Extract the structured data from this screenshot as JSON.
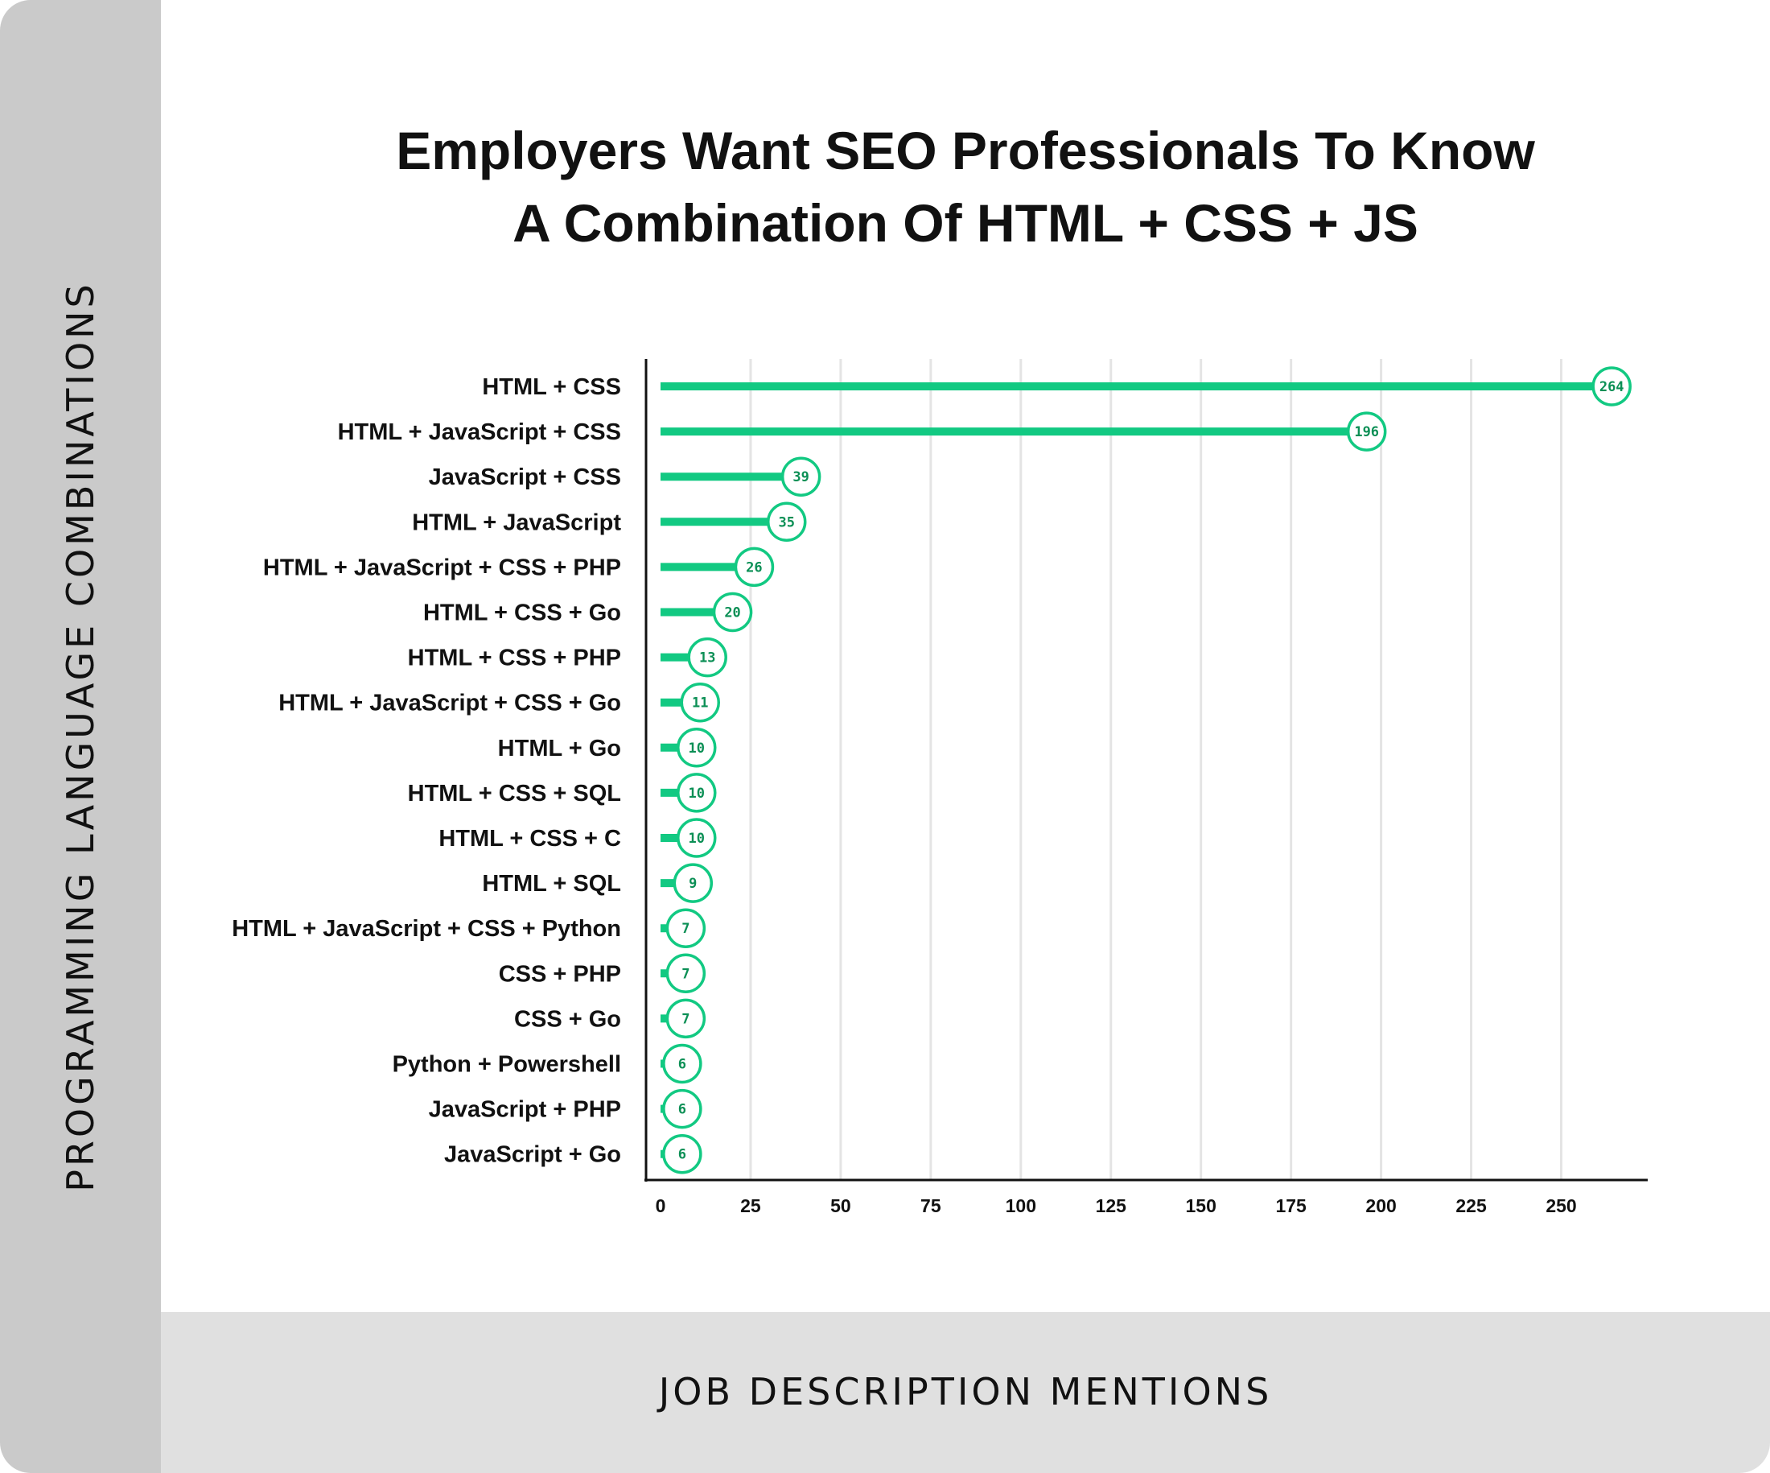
{
  "colors": {
    "bar": "#12c982",
    "marker_stroke": "#12c982",
    "label": "#0b8f55",
    "side_band": "#cacaca",
    "bottom_band": "#e0e0e0",
    "grid": "#e4e4e4"
  },
  "chart_data": {
    "type": "bar",
    "orientation": "horizontal",
    "title_lines": [
      "Employers Want SEO Professionals To Know",
      "A Combination Of HTML + CSS + JS"
    ],
    "xlabel": "JOB DESCRIPTION MENTIONS",
    "ylabel": "PROGRAMMING LANGUAGE COMBINATIONS",
    "xlim": [
      0,
      275
    ],
    "xticks": [
      0,
      25,
      50,
      75,
      100,
      125,
      150,
      175,
      200,
      225,
      250
    ],
    "grid": "vertical",
    "categories": [
      "HTML + CSS",
      "HTML + JavaScript + CSS",
      "JavaScript + CSS",
      "HTML + JavaScript",
      "HTML + JavaScript + CSS + PHP",
      "HTML + CSS + Go",
      "HTML + CSS + PHP",
      "HTML + JavaScript + CSS + Go",
      "HTML + Go",
      "HTML + CSS + SQL",
      "HTML + CSS + C",
      "HTML + SQL",
      "HTML + JavaScript + CSS + Python",
      "CSS + PHP",
      "CSS + Go",
      "Python + Powershell",
      "JavaScript + PHP",
      "JavaScript + Go"
    ],
    "values": [
      264,
      196,
      39,
      35,
      26,
      20,
      13,
      11,
      10,
      10,
      10,
      9,
      7,
      7,
      7,
      6,
      6,
      6
    ]
  }
}
